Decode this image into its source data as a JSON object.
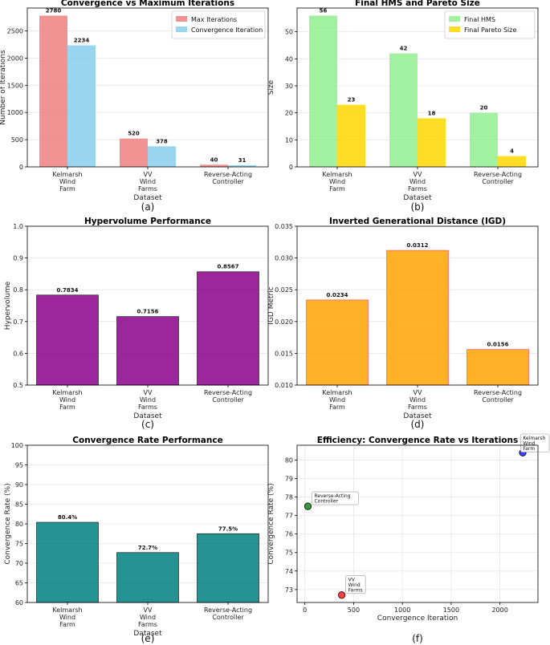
{
  "chart_data": [
    {
      "id": "a",
      "type": "bar",
      "title": "Convergence vs Maximum Iterations",
      "xlabel": "Dataset",
      "ylabel": "Number of Iterations",
      "caption": "(a)",
      "categories": [
        "Kelmarsh\nWind\nFarm",
        "VV\nWind\nFarms",
        "Reverse-Acting\nController"
      ],
      "series": [
        {
          "name": "Max Iterations",
          "values": [
            2780,
            520,
            40
          ],
          "color": "#f08080"
        },
        {
          "name": "Convergence Iteration",
          "values": [
            2234,
            378,
            31
          ],
          "color": "#87ceeb"
        }
      ],
      "ylim": [
        0,
        2920
      ],
      "yticks": [
        0,
        500,
        1000,
        1500,
        2000,
        2500
      ],
      "legend": "top-right"
    },
    {
      "id": "b",
      "type": "bar",
      "title": "Final HMS and Pareto Size",
      "xlabel": "Dataset",
      "ylabel": "Size",
      "caption": "(b)",
      "categories": [
        "Kelmarsh\nWind\nFarm",
        "VV\nWind\nFarms",
        "Reverse-Acting\nController"
      ],
      "series": [
        {
          "name": "Final HMS",
          "values": [
            56,
            42,
            20
          ],
          "color": "#90ee90"
        },
        {
          "name": "Final Pareto Size",
          "values": [
            23,
            18,
            4
          ],
          "color": "#ffd700"
        }
      ],
      "ylim": [
        0,
        58.8
      ],
      "yticks": [
        0,
        10,
        20,
        30,
        40,
        50
      ],
      "legend": "top-right"
    },
    {
      "id": "c",
      "type": "bar",
      "title": "Hypervolume Performance",
      "xlabel": "Dataset",
      "ylabel": "Hypervolume",
      "caption": "(c)",
      "categories": [
        "Kelmarsh\nWind\nFarm",
        "VV\nWind\nFarms",
        "Reverse-Acting\nController"
      ],
      "series": [
        {
          "name": "Hypervolume",
          "values": [
            0.7834,
            0.7156,
            0.8567
          ],
          "color": "#8b008b"
        }
      ],
      "labels": [
        "0.7834",
        "0.7156",
        "0.8567"
      ],
      "ylim": [
        0.5,
        1.0
      ],
      "yticks": [
        0.5,
        0.6,
        0.7,
        0.8,
        0.9,
        1.0
      ],
      "ytick_labels": [
        "0.5",
        "0.6",
        "0.7",
        "0.8",
        "0.9",
        "1.0"
      ]
    },
    {
      "id": "d",
      "type": "bar",
      "title": "Inverted Generational Distance (IGD)",
      "xlabel": "Dataset",
      "ylabel": "IGD Metric",
      "caption": "(d)",
      "categories": [
        "Kelmarsh\nWind\nFarm",
        "VV\nWind\nFarms",
        "Reverse-Acting\nController"
      ],
      "series": [
        {
          "name": "IGD",
          "values": [
            0.0234,
            0.0312,
            0.0156
          ],
          "color": "#ffa500"
        }
      ],
      "labels": [
        "0.0234",
        "0.0312",
        "0.0156"
      ],
      "ylim": [
        0.01,
        0.035
      ],
      "yticks": [
        0.01,
        0.015,
        0.02,
        0.025,
        0.03,
        0.035
      ],
      "ytick_labels": [
        "0.010",
        "0.015",
        "0.020",
        "0.025",
        "0.030",
        "0.035"
      ]
    },
    {
      "id": "e",
      "type": "bar",
      "title": "Convergence Rate Performance",
      "xlabel": "Dataset",
      "ylabel": "Convergence Rate (%)",
      "caption": "(e)",
      "categories": [
        "Kelmarsh\nWind\nFarm",
        "VV\nWind\nFarms",
        "Reverse-Acting\nController"
      ],
      "series": [
        {
          "name": "Convergence Rate",
          "values": [
            80.4,
            72.7,
            77.5
          ],
          "color": "#008080"
        }
      ],
      "labels": [
        "80.4%",
        "72.7%",
        "77.5%"
      ],
      "ylim": [
        60,
        100
      ],
      "yticks": [
        60,
        65,
        70,
        75,
        80,
        85,
        90,
        95,
        100
      ]
    },
    {
      "id": "f",
      "type": "scatter",
      "title": "Efficiency: Convergence Rate vs Iterations",
      "xlabel": "Convergence Iteration",
      "ylabel": "Convergence Rate (%)",
      "caption": "(f)",
      "points": [
        {
          "x": 2234,
          "y": 80.4,
          "label": "Kelmarsh\nWind\nFarm",
          "color": "#4040ff"
        },
        {
          "x": 378,
          "y": 72.7,
          "label": "VV\nWind\nFarms",
          "color": "#ff4040"
        },
        {
          "x": 31,
          "y": 77.5,
          "label": "Reverse-Acting\nController",
          "color": "#3a9a3a"
        }
      ],
      "xlim": [
        -80,
        2390
      ],
      "ylim": [
        72.3,
        80.8
      ],
      "xticks": [
        0,
        500,
        1000,
        1500,
        2000
      ],
      "yticks": [
        73,
        74,
        75,
        76,
        77,
        78,
        79,
        80
      ]
    }
  ]
}
